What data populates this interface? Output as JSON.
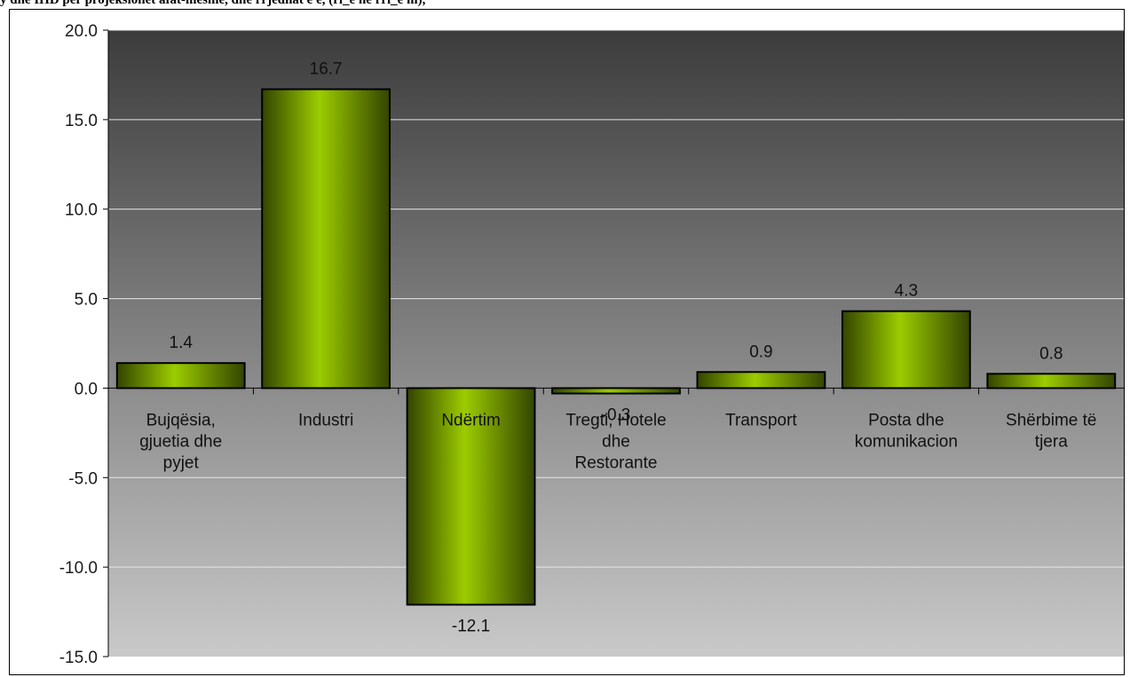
{
  "caption": "y dhe IHD per projeksionet afat-mesme, dhe rrjedhat  e e, (ri_e ne rri_e m),",
  "chart_data": {
    "type": "bar",
    "categories": [
      [
        "Bujqësia,",
        "gjuetia dhe",
        "pyjet"
      ],
      [
        "Industri"
      ],
      [
        "Ndërtim"
      ],
      [
        "Tregti, Hotele",
        "dhe",
        "Restorante"
      ],
      [
        "Transport"
      ],
      [
        "Posta dhe",
        "komunikacion"
      ],
      [
        "Shërbime të",
        "tjera"
      ]
    ],
    "values": [
      1.4,
      16.7,
      -12.1,
      -0.3,
      0.9,
      4.3,
      0.8
    ],
    "value_labels": [
      "1.4",
      "16.7",
      "-12.1",
      "-0.3",
      "0.9",
      "4.3",
      "0.8"
    ],
    "ylim": [
      -15,
      20
    ],
    "yticks": [
      "20.0",
      "15.0",
      "10.0",
      "5.0",
      "0.0",
      "-5.0",
      "-10.0",
      "-15.0"
    ],
    "ytick_values": [
      20,
      15,
      10,
      5,
      0,
      -5,
      -10,
      -15
    ],
    "grid": true,
    "title": "",
    "xlabel": "",
    "ylabel": "",
    "colors": {
      "bar_light": "#9ccc00",
      "bar_dark": "#334400",
      "bar_stroke": "#000000",
      "plot_top": "#3c3c3c",
      "plot_bottom": "#c9c9c9",
      "gridline": "#e6e6e6"
    }
  }
}
